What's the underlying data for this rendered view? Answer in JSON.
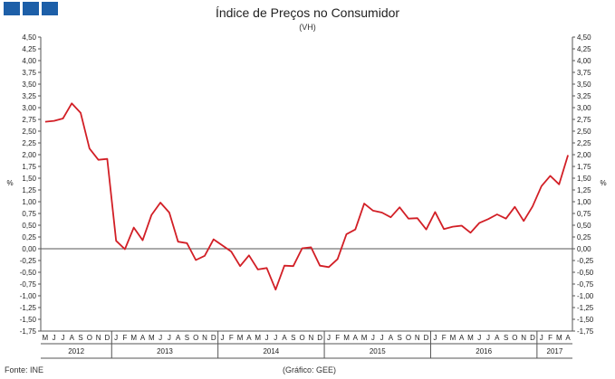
{
  "header": {
    "title": "Índice de Preços no Consumidor",
    "subtitle": "(VH)"
  },
  "footer": {
    "source": "Fonte: INE",
    "credit": "(Gráfico: GEE)"
  },
  "logo": {
    "icon": "gee-logo-icon",
    "color": "#1d5fa8"
  },
  "chart_data": {
    "type": "line",
    "title": "Índice de Preços no Consumidor",
    "subtitle": "(VH)",
    "ylabel": "%",
    "ylabel_right": "%",
    "ylim": [
      -1.75,
      4.5
    ],
    "ytick_step": 0.25,
    "yticks": [
      "4,50",
      "4,25",
      "4,00",
      "3,75",
      "3,50",
      "3,25",
      "3,00",
      "2,75",
      "2,50",
      "2,25",
      "2,00",
      "1,75",
      "1,50",
      "1,25",
      "1,00",
      "0,75",
      "0,50",
      "0,25",
      "0,00",
      "-0,25",
      "-0,50",
      "-0,75",
      "-1,00",
      "-1,25",
      "-1,50",
      "-1,75"
    ],
    "months": [
      "M",
      "J",
      "J",
      "A",
      "S",
      "O",
      "N",
      "D",
      "J",
      "F",
      "M",
      "A",
      "M",
      "J",
      "J",
      "A",
      "S",
      "O",
      "N",
      "D",
      "J",
      "F",
      "M",
      "A",
      "M",
      "J",
      "J",
      "A",
      "S",
      "O",
      "N",
      "D",
      "J",
      "F",
      "M",
      "A",
      "M",
      "J",
      "J",
      "A",
      "S",
      "O",
      "N",
      "D",
      "J",
      "F",
      "M",
      "A",
      "M",
      "J",
      "J",
      "A",
      "S",
      "O",
      "N",
      "D",
      "J",
      "F",
      "M",
      "A"
    ],
    "years": [
      {
        "label": "2012",
        "start": 0,
        "end": 8
      },
      {
        "label": "2013",
        "start": 8,
        "end": 20
      },
      {
        "label": "2014",
        "start": 20,
        "end": 32
      },
      {
        "label": "2015",
        "start": 32,
        "end": 44
      },
      {
        "label": "2016",
        "start": 44,
        "end": 56
      },
      {
        "label": "2017",
        "start": 56,
        "end": 60
      }
    ],
    "series": [
      {
        "color": "#d21f26",
        "values": [
          2.7,
          2.72,
          2.77,
          3.09,
          2.89,
          2.13,
          1.89,
          1.91,
          0.17,
          -0.01,
          0.45,
          0.18,
          0.72,
          0.98,
          0.77,
          0.15,
          0.12,
          -0.24,
          -0.15,
          0.2,
          0.07,
          -0.06,
          -0.37,
          -0.14,
          -0.44,
          -0.41,
          -0.87,
          -0.36,
          -0.37,
          0.01,
          0.03,
          -0.36,
          -0.39,
          -0.22,
          0.31,
          0.41,
          0.96,
          0.81,
          0.77,
          0.67,
          0.88,
          0.64,
          0.65,
          0.41,
          0.78,
          0.42,
          0.47,
          0.49,
          0.34,
          0.55,
          0.63,
          0.73,
          0.64,
          0.89,
          0.59,
          0.9,
          1.33,
          1.55,
          1.37,
          1.99
        ]
      }
    ],
    "grid": false,
    "legend": "none"
  }
}
